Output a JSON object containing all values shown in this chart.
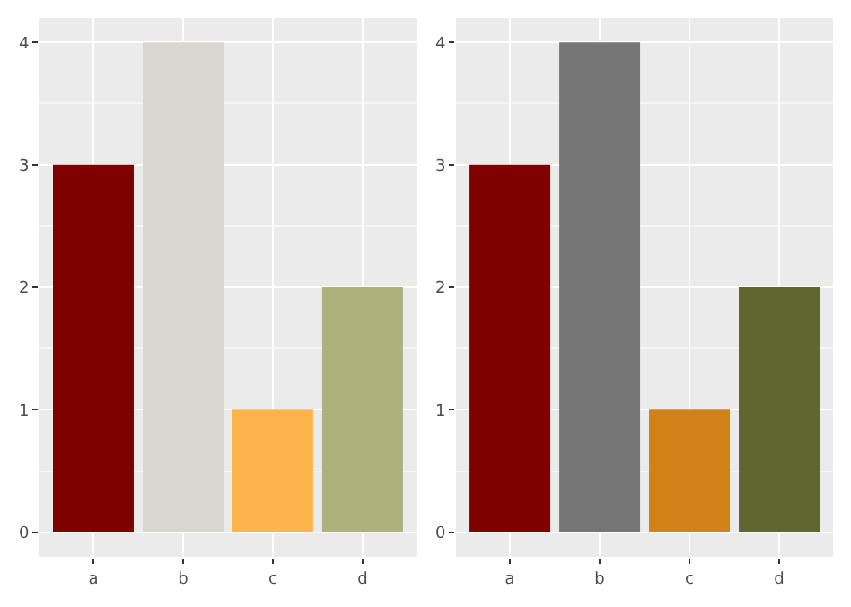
{
  "chart_data": [
    {
      "type": "bar",
      "categories": [
        "a",
        "b",
        "c",
        "d"
      ],
      "values": [
        3,
        4,
        1,
        2
      ],
      "colors": [
        "#800000",
        "#d8d8d0",
        "#fdb44c",
        "#adb27d"
      ],
      "ylim": [
        -0.2,
        4.2
      ],
      "yticks": [
        0,
        1,
        2,
        3,
        4
      ],
      "grid": true
    },
    {
      "type": "bar",
      "categories": [
        "a",
        "b",
        "c",
        "d"
      ],
      "values": [
        3,
        4,
        1,
        2
      ],
      "colors": [
        "#800000",
        "#767676",
        "#cf8219",
        "#5f6630"
      ],
      "ylim": [
        -0.2,
        4.2
      ],
      "yticks": [
        0,
        1,
        2,
        3,
        4
      ],
      "grid": true
    }
  ]
}
